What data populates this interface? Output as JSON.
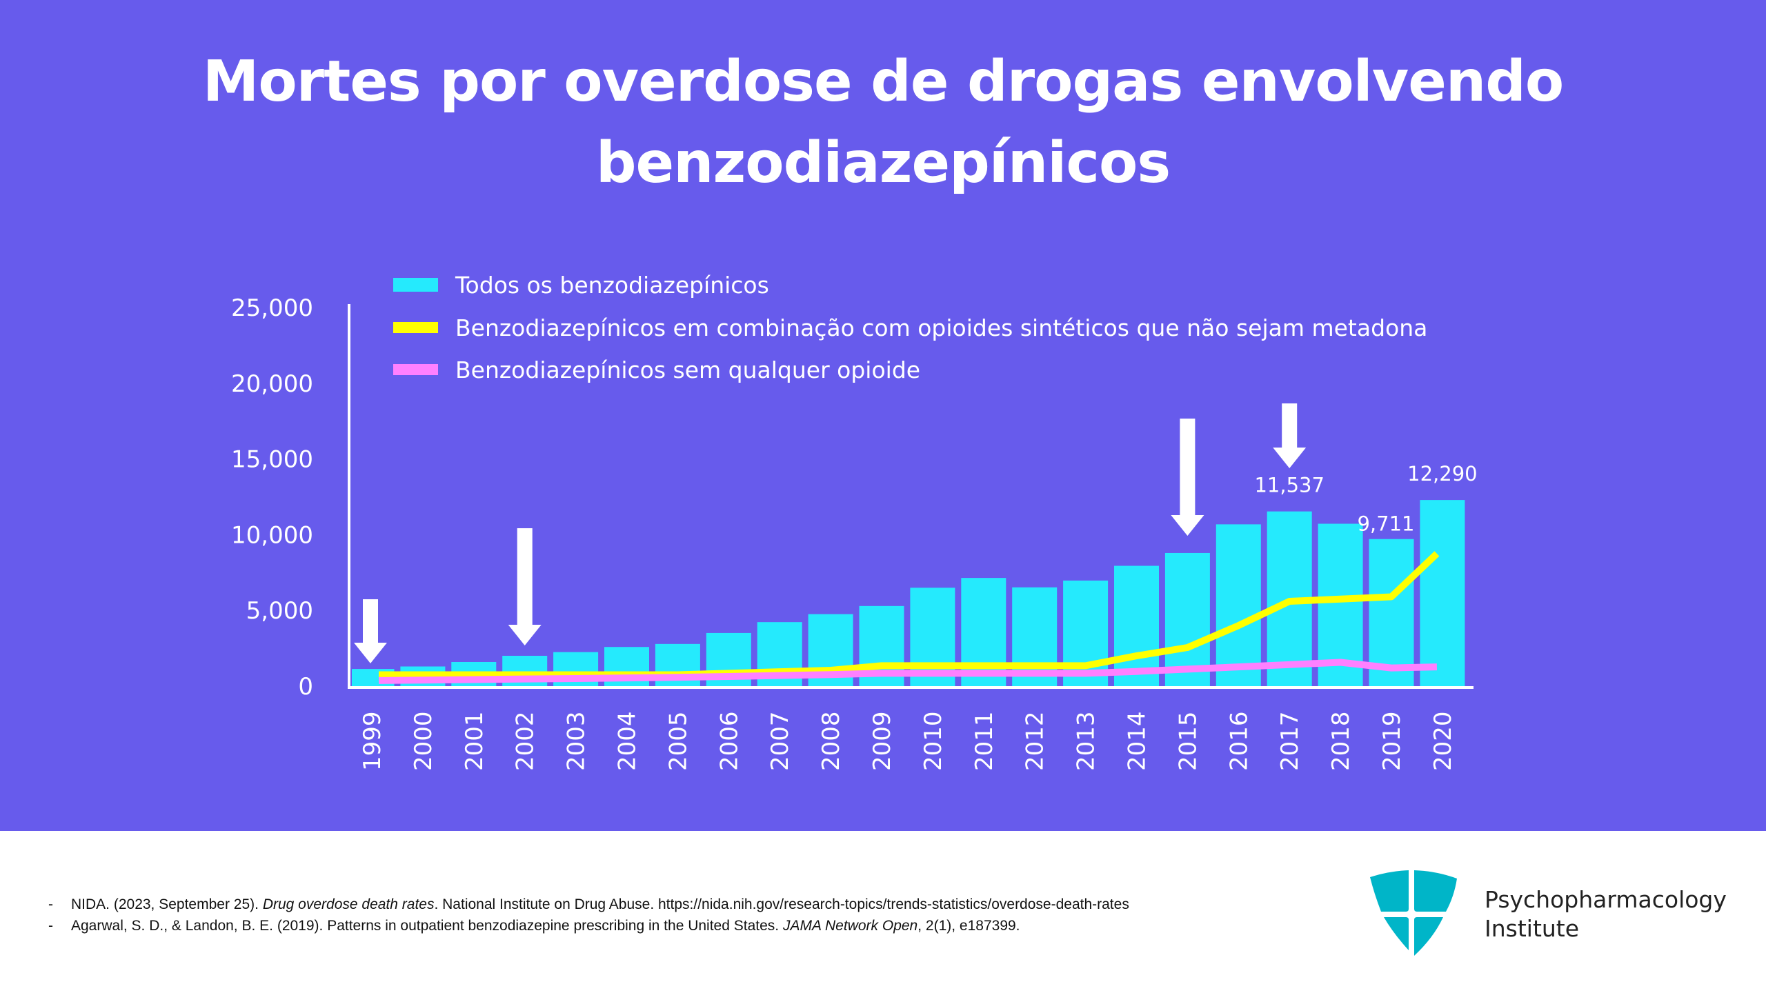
{
  "title_lines": [
    "Mortes por overdose de drogas envolvendo",
    "benzodiazepínicos"
  ],
  "colors": {
    "background": "#675BEC",
    "bars": "#25EAFD",
    "yellow_line": "#FFFF00",
    "pink_line": "#FF80FF",
    "logo": "#00B5C8"
  },
  "chart_data": {
    "type": "bar+line",
    "title": "Mortes por overdose de drogas envolvendo benzodiazepínicos",
    "xlabel": "",
    "ylabel": "",
    "ylim": [
      0,
      25000
    ],
    "yticks": [
      0,
      5000,
      10000,
      15000,
      20000,
      25000
    ],
    "ytick_labels": [
      "0",
      "5,000",
      "10,000",
      "15,000",
      "20,000",
      "25,000"
    ],
    "grid": false,
    "legend_position": "top",
    "categories": [
      "1999",
      "2000",
      "2001",
      "2002",
      "2003",
      "2004",
      "2005",
      "2006",
      "2007",
      "2008",
      "2009",
      "2010",
      "2011",
      "2012",
      "2013",
      "2014",
      "2015",
      "2016",
      "2017",
      "2018",
      "2019",
      "2020"
    ],
    "series": [
      {
        "name": "Todos os benzodiazepínicos",
        "kind": "bar",
        "color": "#25EAFD",
        "values": [
          1135,
          1298,
          1594,
          2004,
          2248,
          2586,
          2785,
          3510,
          4227,
          4756,
          5290,
          6497,
          7144,
          6524,
          6973,
          7945,
          8791,
          10684,
          11537,
          10724,
          9711,
          12290
        ]
      },
      {
        "name": "Benzodiazepínicos em combinação com opioides sintéticos que não sejam metadona",
        "kind": "line",
        "color": "#FFFF00",
        "values": [
          750,
          750,
          750,
          750,
          750,
          750,
          750,
          850,
          950,
          1050,
          1350,
          1350,
          1350,
          1350,
          1350,
          2000,
          2550,
          4000,
          5600,
          5750,
          5900,
          8750
        ]
      },
      {
        "name": "Benzodiazepínicos sem qualquer opioide",
        "kind": "line",
        "color": "#FF80FF",
        "values": [
          370,
          400,
          430,
          470,
          500,
          540,
          580,
          640,
          700,
          760,
          850,
          850,
          850,
          850,
          850,
          970,
          1120,
          1270,
          1420,
          1570,
          1200,
          1270
        ]
      }
    ],
    "data_labels": [
      {
        "category": "2017",
        "text": "11,537"
      },
      {
        "category": "2019",
        "text": "9,711"
      },
      {
        "category": "2020",
        "text": "12,290"
      }
    ],
    "annotations": [
      {
        "type": "arrow-down",
        "category": "1999"
      },
      {
        "type": "arrow-down",
        "category": "2002"
      },
      {
        "type": "arrow-down",
        "category": "2015"
      },
      {
        "type": "arrow-down",
        "category": "2017"
      }
    ]
  },
  "references": [
    {
      "plain1": "NIDA. (2023, September 25). ",
      "italic": "Drug overdose death rates",
      "plain2": ". National Institute on Drug Abuse. https://nida.nih.gov/research-topics/trends-statistics/overdose-death-rates"
    },
    {
      "plain1": "Agarwal, S. D., & Landon, B. E. (2019). Patterns in outpatient benzodiazepine prescribing in the United States. ",
      "italic": "JAMA Network Open",
      "plain2": ", 2(1), e187399."
    }
  ],
  "reference_bullet": "-",
  "logo": {
    "line1": "Psychopharmacology",
    "line2": "Institute",
    "icon": "shield-cross-icon"
  }
}
